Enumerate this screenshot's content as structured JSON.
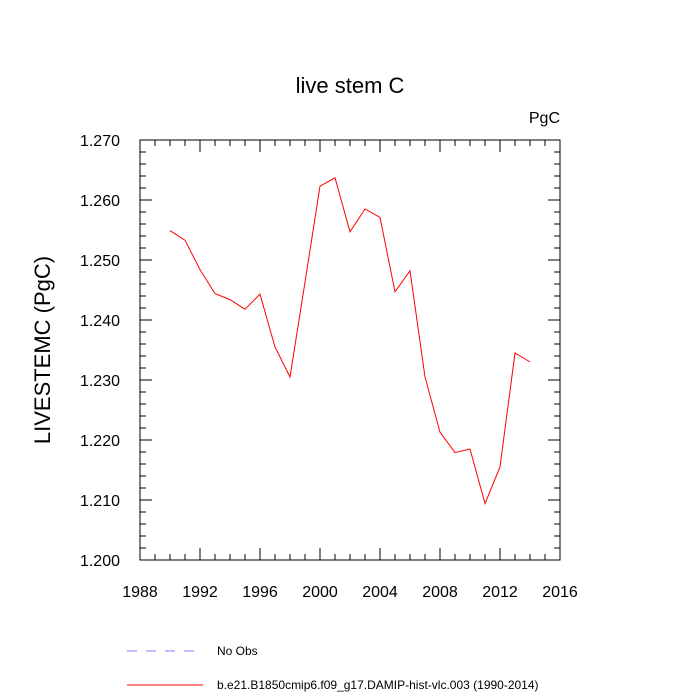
{
  "chart_data": {
    "type": "line",
    "title": "live stem C",
    "units_label": "PgC",
    "ylabel": "LIVESTEMC  (PgC)",
    "xlabel": "",
    "xlim": [
      1988,
      2016
    ],
    "ylim": [
      1.2,
      1.27
    ],
    "xticks": [
      1988,
      1992,
      1996,
      2000,
      2004,
      2008,
      2012,
      2016
    ],
    "yticks": [
      "1.200",
      "1.210",
      "1.220",
      "1.230",
      "1.240",
      "1.250",
      "1.260",
      "1.270"
    ],
    "series": [
      {
        "name": "b.e21.B1850cmip6.f09_g17.DAMIP-hist-vlc.003 (1990-2014)",
        "color": "#ff0000",
        "x": [
          1990,
          1991,
          1992,
          1993,
          1994,
          1995,
          1996,
          1997,
          1998,
          1999,
          2000,
          2001,
          2002,
          2003,
          2004,
          2005,
          2006,
          2007,
          2008,
          2009,
          2010,
          2011,
          2012,
          2013,
          2014
        ],
        "values": [
          1.2549,
          1.2533,
          1.2484,
          1.2444,
          1.2434,
          1.2418,
          1.2443,
          1.2355,
          1.2305,
          1.2463,
          1.2623,
          1.2637,
          1.2547,
          1.2585,
          1.2571,
          1.2447,
          1.2482,
          1.2305,
          1.2213,
          1.2179,
          1.2185,
          1.2094,
          1.2155,
          1.2345,
          1.233
        ]
      }
    ],
    "legend": [
      {
        "label": "No Obs",
        "style": "dashed",
        "color": "#8080ff"
      },
      {
        "label": "b.e21.B1850cmip6.f09_g17.DAMIP-hist-vlc.003 (1990-2014)",
        "style": "solid",
        "color": "#ff0000"
      }
    ]
  }
}
